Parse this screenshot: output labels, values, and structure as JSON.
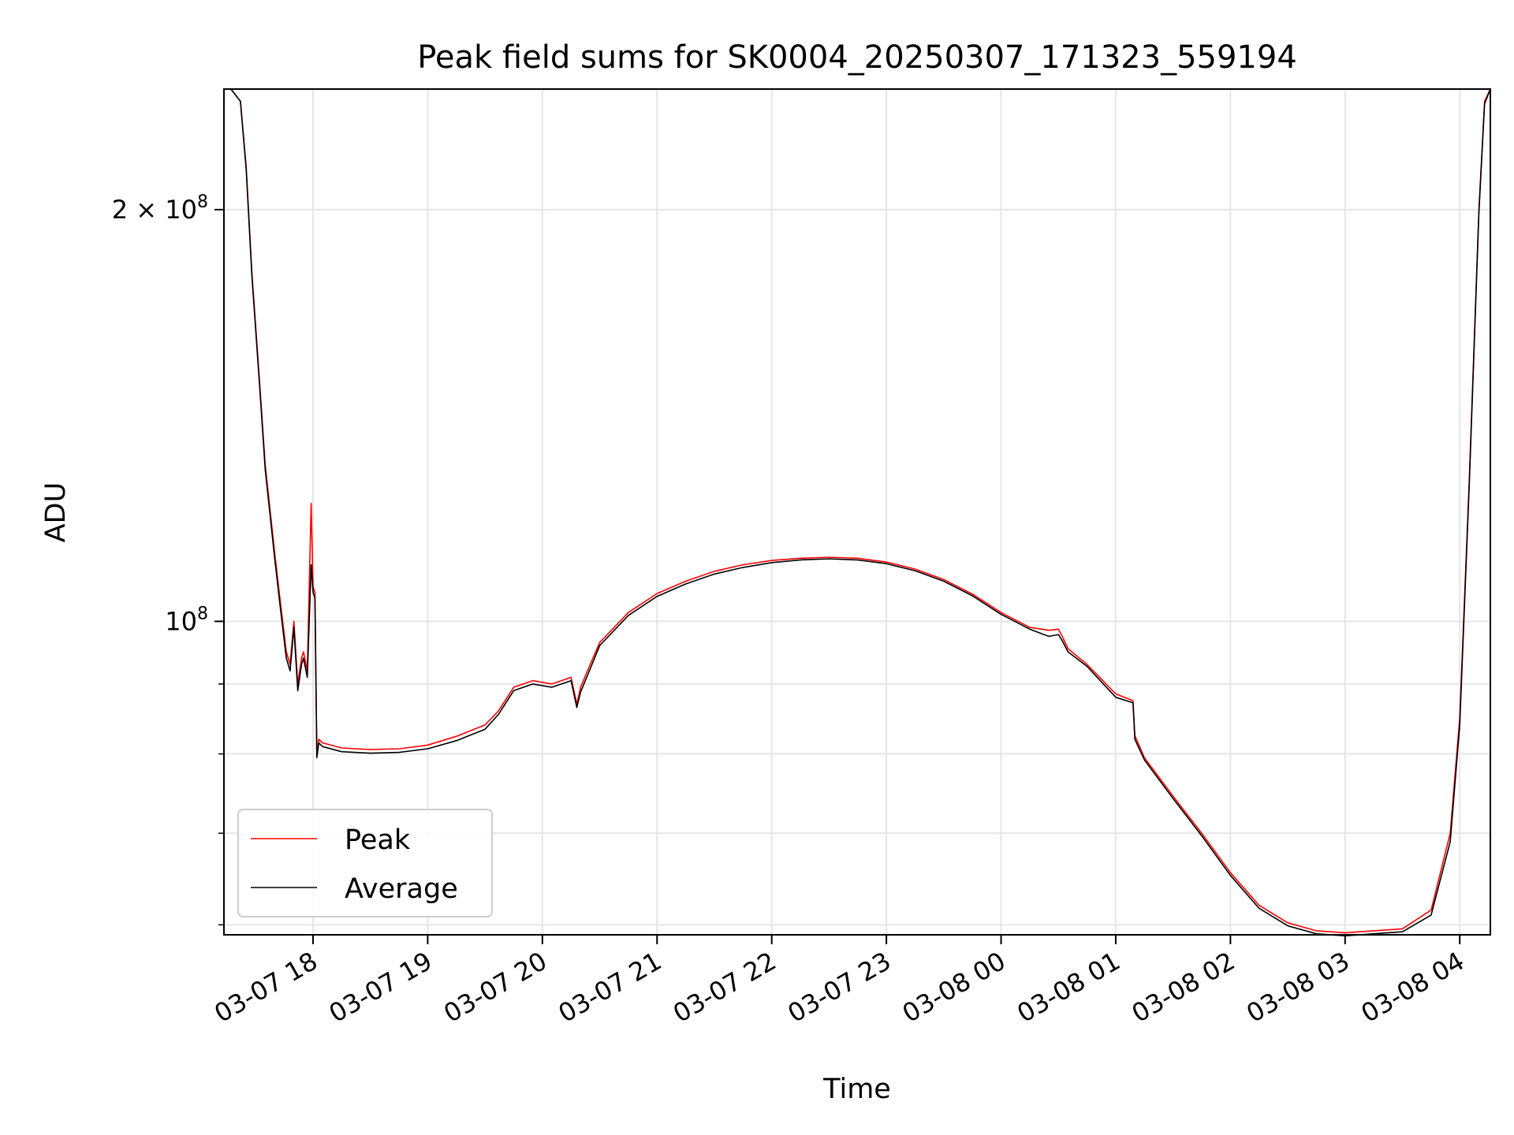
{
  "chart_data": {
    "type": "line",
    "title": "Peak field sums for SK0004_20250307_171323_559194",
    "xlabel": "Time",
    "ylabel": "ADU",
    "yscale": "log",
    "ylim": [
      59000000,
      245000000
    ],
    "xlim": [
      "2025-03-07 17:13:23",
      "2025-03-08 04:16:00"
    ],
    "grid": true,
    "legend_position": "lower-left",
    "x_ticks": [
      "03-07 18",
      "03-07 19",
      "03-07 20",
      "03-07 21",
      "03-07 22",
      "03-07 23",
      "03-08 00",
      "03-08 01",
      "03-08 02",
      "03-08 03",
      "03-08 04"
    ],
    "x_tick_values": [
      "2025-03-07 18:00",
      "2025-03-07 19:00",
      "2025-03-07 20:00",
      "2025-03-07 21:00",
      "2025-03-07 22:00",
      "2025-03-07 23:00",
      "2025-03-08 00:00",
      "2025-03-08 01:00",
      "2025-03-08 02:00",
      "2025-03-08 03:00",
      "2025-03-08 04:00"
    ],
    "y_ticks": [
      {
        "value": 200000000,
        "label": "2 × 10",
        "exp": "8"
      },
      {
        "value": 100000000,
        "label": "10",
        "exp": "8"
      }
    ],
    "y_minor_ticks": [
      60000000,
      70000000,
      80000000,
      90000000
    ],
    "series": [
      {
        "name": "Peak",
        "color": "#ff0000",
        "x": [
          "2025-03-07 17:13",
          "2025-03-07 17:17",
          "2025-03-07 17:22",
          "2025-03-07 17:25",
          "2025-03-07 17:28",
          "2025-03-07 17:32",
          "2025-03-07 17:35",
          "2025-03-07 17:40",
          "2025-03-07 17:43",
          "2025-03-07 17:46",
          "2025-03-07 17:48",
          "2025-03-07 17:50",
          "2025-03-07 17:52",
          "2025-03-07 17:54",
          "2025-03-07 17:55",
          "2025-03-07 17:57",
          "2025-03-07 17:59",
          "2025-03-07 18:00",
          "2025-03-07 18:01",
          "2025-03-07 18:02",
          "2025-03-07 18:03",
          "2025-03-07 18:05",
          "2025-03-07 18:15",
          "2025-03-07 18:30",
          "2025-03-07 18:45",
          "2025-03-07 19:00",
          "2025-03-07 19:15",
          "2025-03-07 19:30",
          "2025-03-07 19:37",
          "2025-03-07 19:45",
          "2025-03-07 19:55",
          "2025-03-07 20:05",
          "2025-03-07 20:15",
          "2025-03-07 20:18",
          "2025-03-07 20:20",
          "2025-03-07 20:25",
          "2025-03-07 20:30",
          "2025-03-07 20:45",
          "2025-03-07 21:00",
          "2025-03-07 21:15",
          "2025-03-07 21:30",
          "2025-03-07 21:45",
          "2025-03-07 22:00",
          "2025-03-07 22:15",
          "2025-03-07 22:30",
          "2025-03-07 22:45",
          "2025-03-07 23:00",
          "2025-03-07 23:15",
          "2025-03-07 23:30",
          "2025-03-07 23:45",
          "2025-03-08 00:00",
          "2025-03-08 00:15",
          "2025-03-08 00:25",
          "2025-03-08 00:30",
          "2025-03-08 00:32",
          "2025-03-08 00:35",
          "2025-03-08 00:45",
          "2025-03-08 01:00",
          "2025-03-08 01:09",
          "2025-03-08 01:10",
          "2025-03-08 01:15",
          "2025-03-08 01:30",
          "2025-03-08 01:45",
          "2025-03-08 02:00",
          "2025-03-08 02:15",
          "2025-03-08 02:30",
          "2025-03-08 02:45",
          "2025-03-08 03:00",
          "2025-03-08 03:15",
          "2025-03-08 03:30",
          "2025-03-08 03:45",
          "2025-03-08 03:55",
          "2025-03-08 04:00",
          "2025-03-08 04:05",
          "2025-03-08 04:10",
          "2025-03-08 04:13",
          "2025-03-08 04:16"
        ],
        "y": [
          245000000,
          245000000,
          240000000,
          215000000,
          180000000,
          150000000,
          130000000,
          112000000,
          103000000,
          95000000,
          93000000,
          100000000,
          90000000,
          94000000,
          95000000,
          92000000,
          122000000,
          106000000,
          105000000,
          80000000,
          82000000,
          81500000,
          80800000,
          80600000,
          80700000,
          81200000,
          82400000,
          84000000,
          86000000,
          89500000,
          90500000,
          90000000,
          91000000,
          87000000,
          89500000,
          93000000,
          96500000,
          101500000,
          104800000,
          107000000,
          108800000,
          110000000,
          110800000,
          111200000,
          111400000,
          111200000,
          110500000,
          109200000,
          107300000,
          104700000,
          101500000,
          99000000,
          98500000,
          98700000,
          97500000,
          95500000,
          93000000,
          88500000,
          87500000,
          82500000,
          79500000,
          74500000,
          70000000,
          65500000,
          62000000,
          60200000,
          59400000,
          59200000,
          59400000,
          59600000,
          61500000,
          70000000,
          85000000,
          127000000,
          200000000,
          240000000,
          245000000
        ]
      },
      {
        "name": "Average",
        "color": "#000000",
        "x": [
          "2025-03-07 17:13",
          "2025-03-07 17:17",
          "2025-03-07 17:22",
          "2025-03-07 17:25",
          "2025-03-07 17:28",
          "2025-03-07 17:32",
          "2025-03-07 17:35",
          "2025-03-07 17:40",
          "2025-03-07 17:43",
          "2025-03-07 17:46",
          "2025-03-07 17:48",
          "2025-03-07 17:50",
          "2025-03-07 17:52",
          "2025-03-07 17:54",
          "2025-03-07 17:55",
          "2025-03-07 17:57",
          "2025-03-07 17:59",
          "2025-03-07 18:00",
          "2025-03-07 18:01",
          "2025-03-07 18:02",
          "2025-03-07 18:03",
          "2025-03-07 18:05",
          "2025-03-07 18:15",
          "2025-03-07 18:30",
          "2025-03-07 18:45",
          "2025-03-07 19:00",
          "2025-03-07 19:15",
          "2025-03-07 19:30",
          "2025-03-07 19:37",
          "2025-03-07 19:45",
          "2025-03-07 19:55",
          "2025-03-07 20:05",
          "2025-03-07 20:15",
          "2025-03-07 20:18",
          "2025-03-07 20:20",
          "2025-03-07 20:25",
          "2025-03-07 20:30",
          "2025-03-07 20:45",
          "2025-03-07 21:00",
          "2025-03-07 21:15",
          "2025-03-07 21:30",
          "2025-03-07 21:45",
          "2025-03-07 22:00",
          "2025-03-07 22:15",
          "2025-03-07 22:30",
          "2025-03-07 22:45",
          "2025-03-07 23:00",
          "2025-03-07 23:15",
          "2025-03-07 23:30",
          "2025-03-07 23:45",
          "2025-03-08 00:00",
          "2025-03-08 00:15",
          "2025-03-08 00:25",
          "2025-03-08 00:30",
          "2025-03-08 00:32",
          "2025-03-08 00:35",
          "2025-03-08 00:45",
          "2025-03-08 01:00",
          "2025-03-08 01:09",
          "2025-03-08 01:10",
          "2025-03-08 01:15",
          "2025-03-08 01:30",
          "2025-03-08 01:45",
          "2025-03-08 02:00",
          "2025-03-08 02:15",
          "2025-03-08 02:30",
          "2025-03-08 02:45",
          "2025-03-08 03:00",
          "2025-03-08 03:15",
          "2025-03-08 03:30",
          "2025-03-08 03:45",
          "2025-03-08 03:55",
          "2025-03-08 04:00",
          "2025-03-08 04:05",
          "2025-03-08 04:10",
          "2025-03-08 04:13",
          "2025-03-08 04:16"
        ],
        "y": [
          245000000,
          245000000,
          240000000,
          214000000,
          179000000,
          149000000,
          129000000,
          111000000,
          102000000,
          94000000,
          92000000,
          99000000,
          89000000,
          93000000,
          94000000,
          91000000,
          110000000,
          105000000,
          104000000,
          79500000,
          81500000,
          81000000,
          80300000,
          80100000,
          80200000,
          80700000,
          81800000,
          83400000,
          85500000,
          89000000,
          90000000,
          89500000,
          90500000,
          86500000,
          88800000,
          92300000,
          96000000,
          101000000,
          104300000,
          106500000,
          108300000,
          109500000,
          110400000,
          110900000,
          111100000,
          110900000,
          110200000,
          108900000,
          107000000,
          104400000,
          101200000,
          98700000,
          97500000,
          97800000,
          96800000,
          95000000,
          92700000,
          88000000,
          87200000,
          82000000,
          79200000,
          74200000,
          69700000,
          65200000,
          61700000,
          59900000,
          59100000,
          58900000,
          59100000,
          59300000,
          61000000,
          69000000,
          84000000,
          126000000,
          199000000,
          239000000,
          245000000
        ]
      }
    ]
  }
}
